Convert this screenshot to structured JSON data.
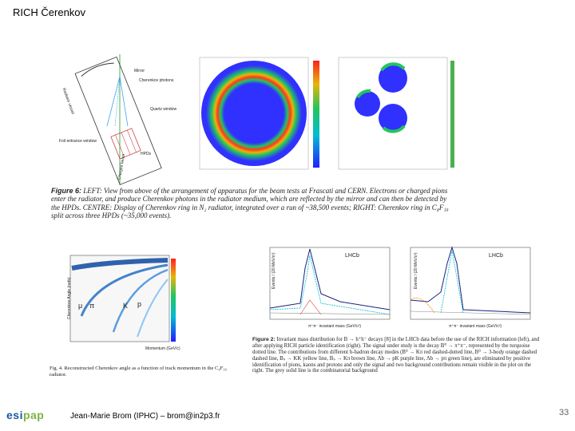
{
  "title": "RICH Čerenkov",
  "figure6": {
    "diagram_labels": {
      "mirror": "Mirror",
      "cherenkov_photons": "Cherenkov photons",
      "quartz_window": "Quartz window",
      "radiator_vessel": "Radiator vessel",
      "foil": "Foil entrance window",
      "hpds": "HPDs",
      "charged_beam": "Charged beam"
    },
    "caption_label": "Figure 6:",
    "caption_text": "LEFT: View from above of the arrangement of apparatus for the beam tests at Frascati and CERN. Electrons or charged pions enter the radiator, and produce Cherenkov photons in the radiator medium, which are reflected by the mirror and can then be detected by the HPDs. CENTRE: Display of Cherenkov ring in N₂ radiator, integrated over a run of ~38,500 events; RIGHT: Cherenkov ring in C₄F₁₀ split across three HPDs (~35,000 events)."
  },
  "plot_left": {
    "particles": [
      "μ",
      "π",
      "K",
      "p"
    ],
    "ylabel": "Cherenkov Angle (rads)",
    "xlabel": "Momentum (GeV/c)",
    "caption": "Fig. 4. Reconstructed Cherenkov angle as a function of track momentum in the C₄F₁₀ radiator."
  },
  "plot_mass_left": {
    "brand": "LHCb",
    "ylabel": "Events / (20 MeV/c²)",
    "xlabel": "π⁺π⁻ invariant mass (GeV/c²)"
  },
  "plot_mass_right": {
    "brand": "LHCb",
    "ylabel": "Events / (20 MeV/c²)",
    "xlabel": "π⁺π⁻ invariant mass (GeV/c²)"
  },
  "figure2": {
    "caption_label": "Figure 2:",
    "caption_text": "Invariant mass distribution for B → h⁺h⁻ decays [8] in the LHCb data before the use of the RICH information (left), and after applying RICH particle identification (right). The signal under study is the decay B⁰ → π⁺π⁻, represented by the turquoise dotted line. The contributions from different b-hadron decay modes (B⁰ → Kπ red dashed-dotted line, B⁰ → 3-body orange dashed dashed line, Bₛ → KK yellow line, Bₛ → Kπ brown line, Λb → pK purple line, Λb → pπ green line), are eliminated by positive identification of pions, kaons and protons and only the signal and two background contributions remain visible in the plot on the right. The grey solid line is the combinatorial background"
  },
  "footer": "Jean-Marie Brom (IPHC) – brom@in2p3.fr",
  "logo_main": "esi",
  "logo_accent": "pap",
  "page_number": "33",
  "colors": {
    "accent": "#1a5aa6",
    "ring_bg": "#3030ff",
    "data_points": "#1a237e"
  }
}
